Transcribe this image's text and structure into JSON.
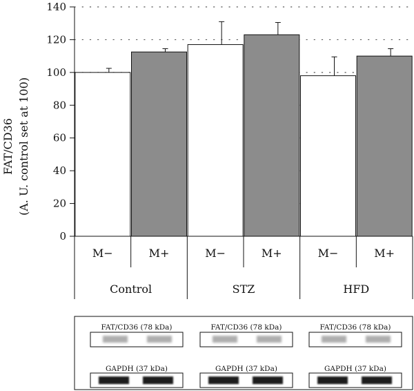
{
  "chart_data": {
    "type": "bar",
    "ylabel_line1": "FAT/CD36",
    "ylabel_line2": "(A. U. control set at 100)",
    "ylim": [
      0,
      140
    ],
    "yticks": [
      0,
      20,
      40,
      60,
      80,
      100,
      120,
      140
    ],
    "grid": "horizontal-dotted",
    "groups": [
      {
        "name": "Control",
        "bars": [
          {
            "label": "M−",
            "value": 100,
            "error": 2.5,
            "color": "#ffffff"
          },
          {
            "label": "M+",
            "value": 112.5,
            "error": 2,
            "color": "#8c8c8c"
          }
        ]
      },
      {
        "name": "STZ",
        "bars": [
          {
            "label": "M−",
            "value": 117,
            "error": 14,
            "color": "#ffffff"
          },
          {
            "label": "M+",
            "value": 123,
            "error": 7.5,
            "color": "#8c8c8c"
          }
        ]
      },
      {
        "name": "HFD",
        "bars": [
          {
            "label": "M−",
            "value": 98,
            "error": 11.5,
            "color": "#ffffff"
          },
          {
            "label": "M+",
            "value": 110,
            "error": 4.5,
            "color": "#8c8c8c"
          }
        ]
      }
    ],
    "blots": [
      {
        "top_label": "FAT/CD36 (78 kDa)",
        "bottom_label": "GAPDH (37 kDa)"
      },
      {
        "top_label": "FAT/CD36 (78 kDa)",
        "bottom_label": "GAPDH (37 kDa)"
      },
      {
        "top_label": "FAT/CD36 (78 kDa)",
        "bottom_label": "GAPDH (37 kDa)"
      }
    ]
  }
}
